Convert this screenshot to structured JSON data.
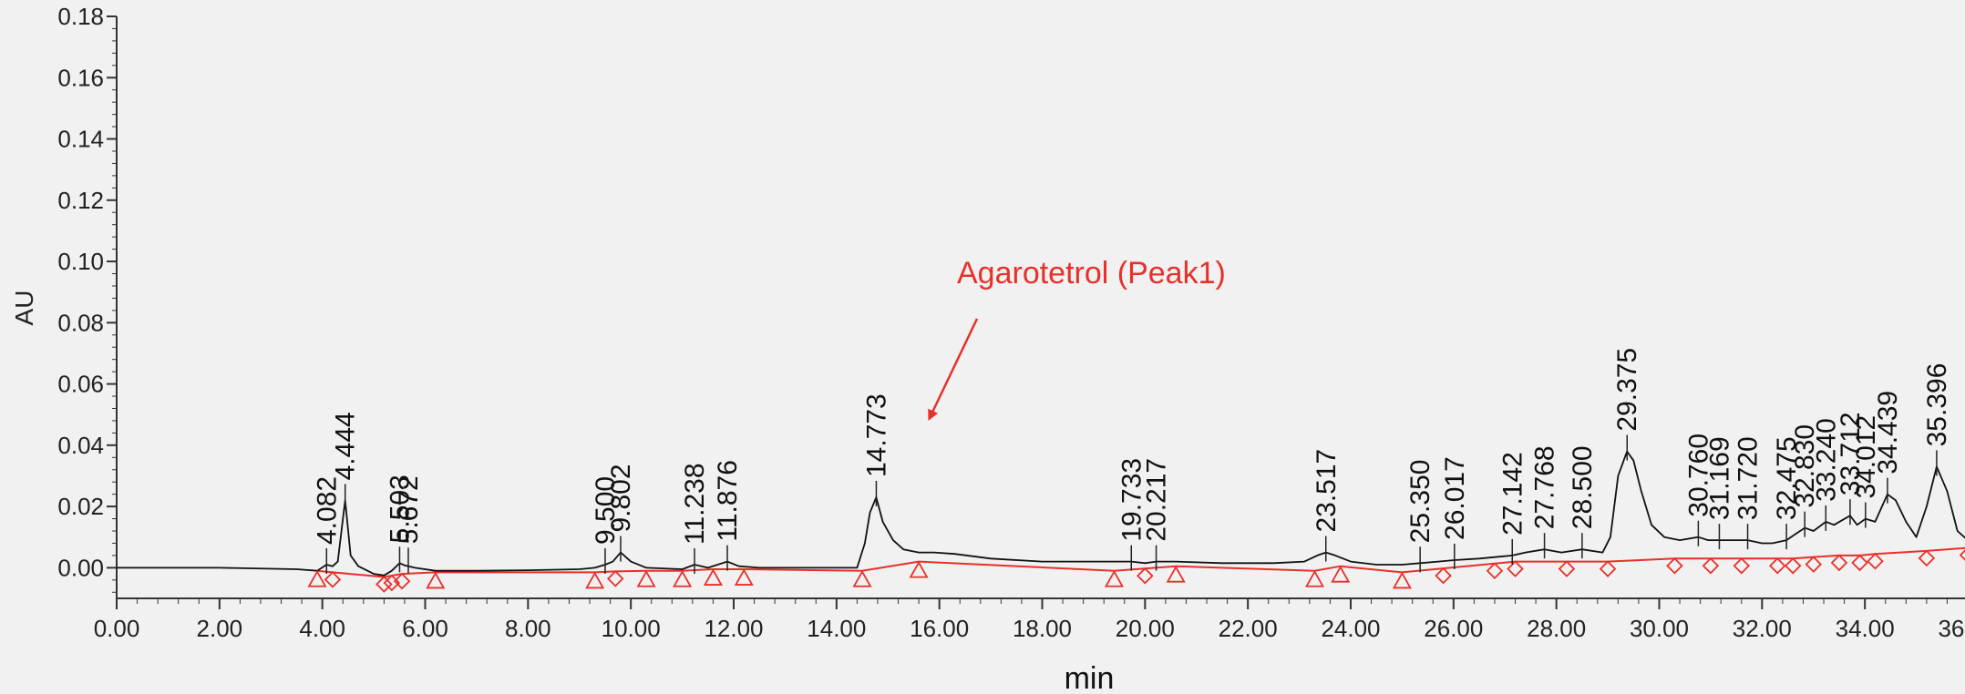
{
  "chart_data": {
    "type": "line",
    "title": "",
    "xlabel": "min",
    "ylabel": "AU",
    "xlim": [
      0,
      36
    ],
    "ylim": [
      -0.01,
      0.18
    ],
    "x_ticks": [
      "0.00",
      "2.00",
      "4.00",
      "6.00",
      "8.00",
      "10.00",
      "12.00",
      "14.00",
      "16.00",
      "18.00",
      "20.00",
      "22.00",
      "24.00",
      "26.00",
      "28.00",
      "30.00",
      "32.00",
      "34.00",
      "36.00"
    ],
    "y_ticks": [
      "0.00",
      "0.02",
      "0.04",
      "0.06",
      "0.08",
      "0.10",
      "0.12",
      "0.14",
      "0.16",
      "0.18"
    ],
    "grid": false,
    "colors": {
      "trace": "#111111",
      "baseline": "#e8302a",
      "markers": "#e8302a",
      "annotation": "#e8302a",
      "axis": "#333333"
    },
    "series": [
      {
        "x": [
          0,
          2,
          3.5,
          3.9,
          4.082,
          4.2,
          4.3,
          4.444,
          4.55,
          4.7,
          5.0,
          5.2,
          5.35,
          5.503,
          5.6,
          5.8,
          6.2,
          7.0,
          8.0,
          9.0,
          9.3,
          9.5,
          9.65,
          9.802,
          10.0,
          10.3,
          11.0,
          11.238,
          11.5,
          11.876,
          12.1,
          12.5,
          13.5,
          14.4,
          14.55,
          14.65,
          14.773,
          14.9,
          15.1,
          15.3,
          15.6,
          15.9,
          16.3,
          17.0,
          18.0,
          19.0,
          19.5,
          19.733,
          20.0,
          20.217,
          20.6,
          21.5,
          22.5,
          23.1,
          23.35,
          23.517,
          23.7,
          24.0,
          24.5,
          25.0,
          25.35,
          25.7,
          26.017,
          26.5,
          27.142,
          27.4,
          27.768,
          28.1,
          28.5,
          28.9,
          29.05,
          29.2,
          29.375,
          29.5,
          29.65,
          29.85,
          30.1,
          30.4,
          30.76,
          30.95,
          31.169,
          31.45,
          31.72,
          32.0,
          32.2,
          32.475,
          32.65,
          32.83,
          33.0,
          33.24,
          33.4,
          33.712,
          33.85,
          34.012,
          34.2,
          34.439,
          34.6,
          34.8,
          35.0,
          35.2,
          35.396,
          35.6,
          35.8,
          36.0
        ],
        "y": [
          0,
          0,
          -0.0005,
          -0.001,
          0.001,
          0.0005,
          0.002,
          0.022,
          0.004,
          0.0005,
          -0.002,
          -0.0025,
          -0.001,
          0.0015,
          0.0008,
          0,
          -0.001,
          -0.001,
          -0.0008,
          -0.0005,
          0,
          0.001,
          0.002,
          0.005,
          0.002,
          0,
          -0.0005,
          0.001,
          0,
          0.002,
          0.0005,
          0,
          0,
          0,
          0.008,
          0.018,
          0.023,
          0.015,
          0.009,
          0.006,
          0.005,
          0.005,
          0.0045,
          0.003,
          0.002,
          0.002,
          0.002,
          0.002,
          0.0015,
          0.002,
          0.002,
          0.0015,
          0.0015,
          0.002,
          0.004,
          0.005,
          0.004,
          0.002,
          0.001,
          0.001,
          0.0015,
          0.002,
          0.0025,
          0.003,
          0.004,
          0.005,
          0.006,
          0.005,
          0.006,
          0.005,
          0.01,
          0.03,
          0.038,
          0.035,
          0.025,
          0.014,
          0.01,
          0.009,
          0.01,
          0.009,
          0.009,
          0.009,
          0.009,
          0.008,
          0.008,
          0.009,
          0.011,
          0.013,
          0.012,
          0.015,
          0.014,
          0.017,
          0.014,
          0.016,
          0.015,
          0.024,
          0.022,
          0.015,
          0.01,
          0.02,
          0.033,
          0.025,
          0.012,
          0.009
        ]
      }
    ],
    "baseline": {
      "x": [
        3.9,
        4.2,
        5.2,
        5.55,
        6.2,
        9.3,
        9.7,
        10.3,
        11.0,
        11.6,
        12.2,
        14.5,
        15.6,
        19.4,
        20.6,
        23.3,
        23.8,
        25.0,
        27.2,
        28.2,
        29.0,
        30.3,
        31.0,
        31.6,
        32.3,
        32.6,
        33.0,
        33.5,
        33.9,
        34.2,
        35.2,
        36.0
      ],
      "y": [
        -0.001,
        -0.0015,
        -0.003,
        -0.002,
        -0.0015,
        -0.0015,
        -0.0012,
        -0.001,
        -0.001,
        -0.0005,
        -0.0005,
        -0.001,
        0.002,
        -0.001,
        0.0005,
        -0.001,
        0.0005,
        -0.0015,
        0.002,
        0.002,
        0.002,
        0.003,
        0.003,
        0.003,
        0.003,
        0.003,
        0.0035,
        0.004,
        0.004,
        0.0045,
        0.0055,
        0.0065
      ]
    },
    "triangle_markers": [
      3.9,
      6.2,
      9.3,
      10.3,
      11.0,
      11.6,
      12.2,
      14.5,
      15.6,
      19.4,
      20.6,
      23.3,
      23.8,
      25.0
    ],
    "diamond_markers": [
      4.2,
      5.2,
      5.35,
      5.55,
      9.7,
      20.0,
      25.8,
      26.8,
      27.2,
      28.2,
      29.0,
      30.3,
      31.0,
      31.6,
      32.3,
      32.6,
      33.0,
      33.5,
      33.9,
      34.2,
      35.2,
      36.0
    ],
    "peaks": [
      {
        "label": "4.082",
        "x": 4.082,
        "y": 0.001
      },
      {
        "label": "4.444",
        "x": 4.444,
        "y": 0.022
      },
      {
        "label": "5.503",
        "x": 5.503,
        "y": 0.0015
      },
      {
        "label": "5.672",
        "x": 5.672,
        "y": 0.0012
      },
      {
        "label": "9.500",
        "x": 9.5,
        "y": 0.001
      },
      {
        "label": "9.802",
        "x": 9.802,
        "y": 0.005
      },
      {
        "label": "11.238",
        "x": 11.238,
        "y": 0.001
      },
      {
        "label": "11.876",
        "x": 11.876,
        "y": 0.002
      },
      {
        "label": "14.773",
        "x": 14.773,
        "y": 0.023
      },
      {
        "label": "19.733",
        "x": 19.733,
        "y": 0.002
      },
      {
        "label": "20.217",
        "x": 20.217,
        "y": 0.002
      },
      {
        "label": "23.517",
        "x": 23.517,
        "y": 0.005
      },
      {
        "label": "25.350",
        "x": 25.35,
        "y": 0.0015
      },
      {
        "label": "26.017",
        "x": 26.017,
        "y": 0.0025
      },
      {
        "label": "27.142",
        "x": 27.142,
        "y": 0.004
      },
      {
        "label": "27.768",
        "x": 27.768,
        "y": 0.006
      },
      {
        "label": "28.500",
        "x": 28.5,
        "y": 0.006
      },
      {
        "label": "29.375",
        "x": 29.375,
        "y": 0.038
      },
      {
        "label": "30.760",
        "x": 30.76,
        "y": 0.01
      },
      {
        "label": "31.169",
        "x": 31.169,
        "y": 0.009
      },
      {
        "label": "31.720",
        "x": 31.72,
        "y": 0.009
      },
      {
        "label": "32.475",
        "x": 32.475,
        "y": 0.009
      },
      {
        "label": "32.830",
        "x": 32.83,
        "y": 0.013
      },
      {
        "label": "33.240",
        "x": 33.24,
        "y": 0.015
      },
      {
        "label": "33.712",
        "x": 33.712,
        "y": 0.017
      },
      {
        "label": "34.012",
        "x": 34.012,
        "y": 0.016
      },
      {
        "label": "34.439",
        "x": 34.439,
        "y": 0.024
      },
      {
        "label": "35.396",
        "x": 35.396,
        "y": 0.033
      }
    ],
    "annotations": [
      {
        "text": "Agarotetrol (Peak1)",
        "x": 15.8,
        "y": 0.0485
      }
    ]
  }
}
